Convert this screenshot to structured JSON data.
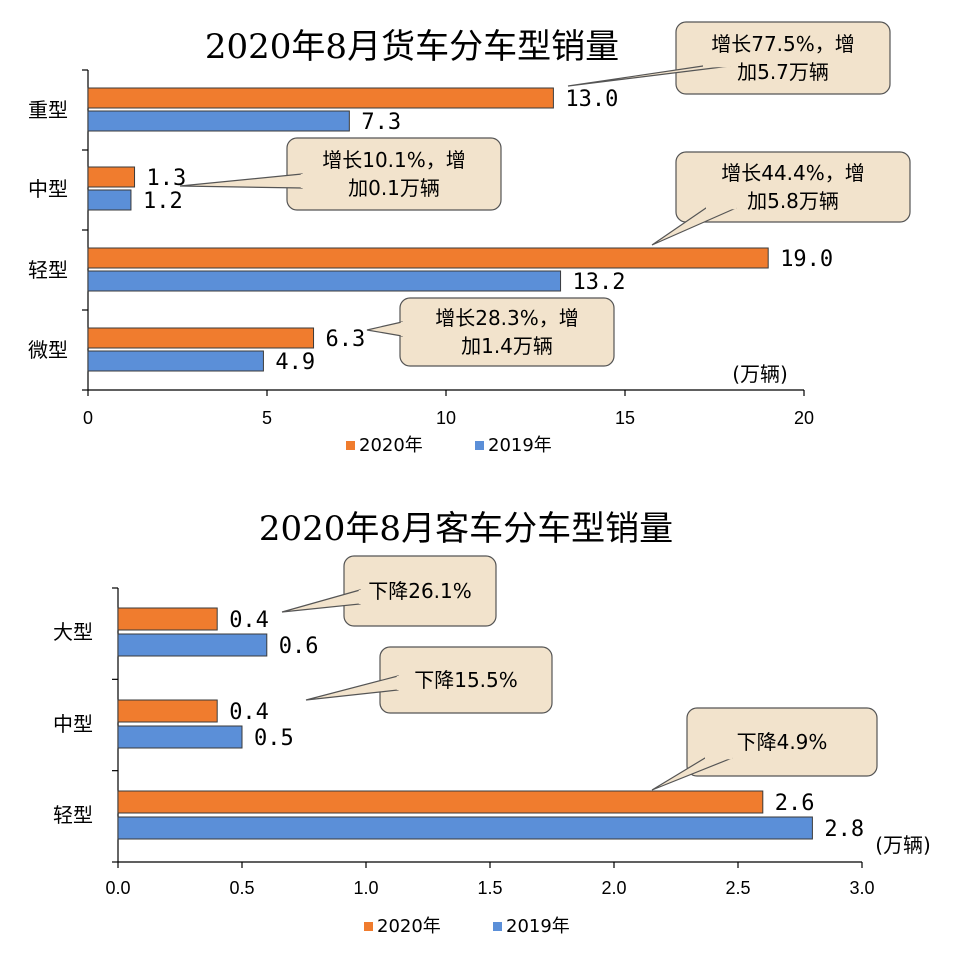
{
  "colors": {
    "series_2020": "#f07c2e",
    "series_2019": "#5b8fd8",
    "callout_fill": "#f2e3cc"
  },
  "chart_data": [
    {
      "type": "bar",
      "orientation": "horizontal",
      "title": "2020年8月货车分车型销量",
      "categories": [
        "重型",
        "中型",
        "轻型",
        "微型"
      ],
      "series": [
        {
          "name": "2020年",
          "values": [
            13.0,
            1.3,
            19.0,
            6.3
          ],
          "labels": [
            "13.0",
            "1.3",
            "19.0",
            "6.3"
          ]
        },
        {
          "name": "2019年",
          "values": [
            7.3,
            1.2,
            13.2,
            4.9
          ],
          "labels": [
            "7.3",
            "1.2",
            "13.2",
            "4.9"
          ]
        }
      ],
      "xlim": [
        0,
        20
      ],
      "ticks": [
        "0",
        "5",
        "10",
        "15",
        "20"
      ],
      "unit": "(万辆)",
      "legend": [
        "2020年",
        "2019年"
      ],
      "legend_position": "bottom",
      "annotations": [
        {
          "category": "重型",
          "lines": [
            "增长77.5%，增",
            "加5.7万辆"
          ]
        },
        {
          "category": "中型",
          "lines": [
            "增长10.1%，增",
            "加0.1万辆"
          ]
        },
        {
          "category": "轻型",
          "lines": [
            "增长44.4%，增",
            "加5.8万辆"
          ]
        },
        {
          "category": "微型",
          "lines": [
            "增长28.3%，增",
            "加1.4万辆"
          ]
        }
      ]
    },
    {
      "type": "bar",
      "orientation": "horizontal",
      "title": "2020年8月客车分车型销量",
      "categories": [
        "大型",
        "中型",
        "轻型"
      ],
      "series": [
        {
          "name": "2020年",
          "values": [
            0.4,
            0.4,
            2.6
          ],
          "labels": [
            "0.4",
            "0.4",
            "2.6"
          ]
        },
        {
          "name": "2019年",
          "values": [
            0.6,
            0.5,
            2.8
          ],
          "labels": [
            "0.6",
            "0.5",
            "2.8"
          ]
        }
      ],
      "xlim": [
        0,
        3.0
      ],
      "ticks": [
        "0.0",
        "0.5",
        "1.0",
        "1.5",
        "2.0",
        "2.5",
        "3.0"
      ],
      "unit": "(万辆)",
      "legend": [
        "2020年",
        "2019年"
      ],
      "legend_position": "bottom",
      "annotations": [
        {
          "category": "大型",
          "lines": [
            "下降26.1%"
          ]
        },
        {
          "category": "中型",
          "lines": [
            "下降15.5%"
          ]
        },
        {
          "category": "轻型",
          "lines": [
            "下降4.9%"
          ]
        }
      ]
    }
  ]
}
